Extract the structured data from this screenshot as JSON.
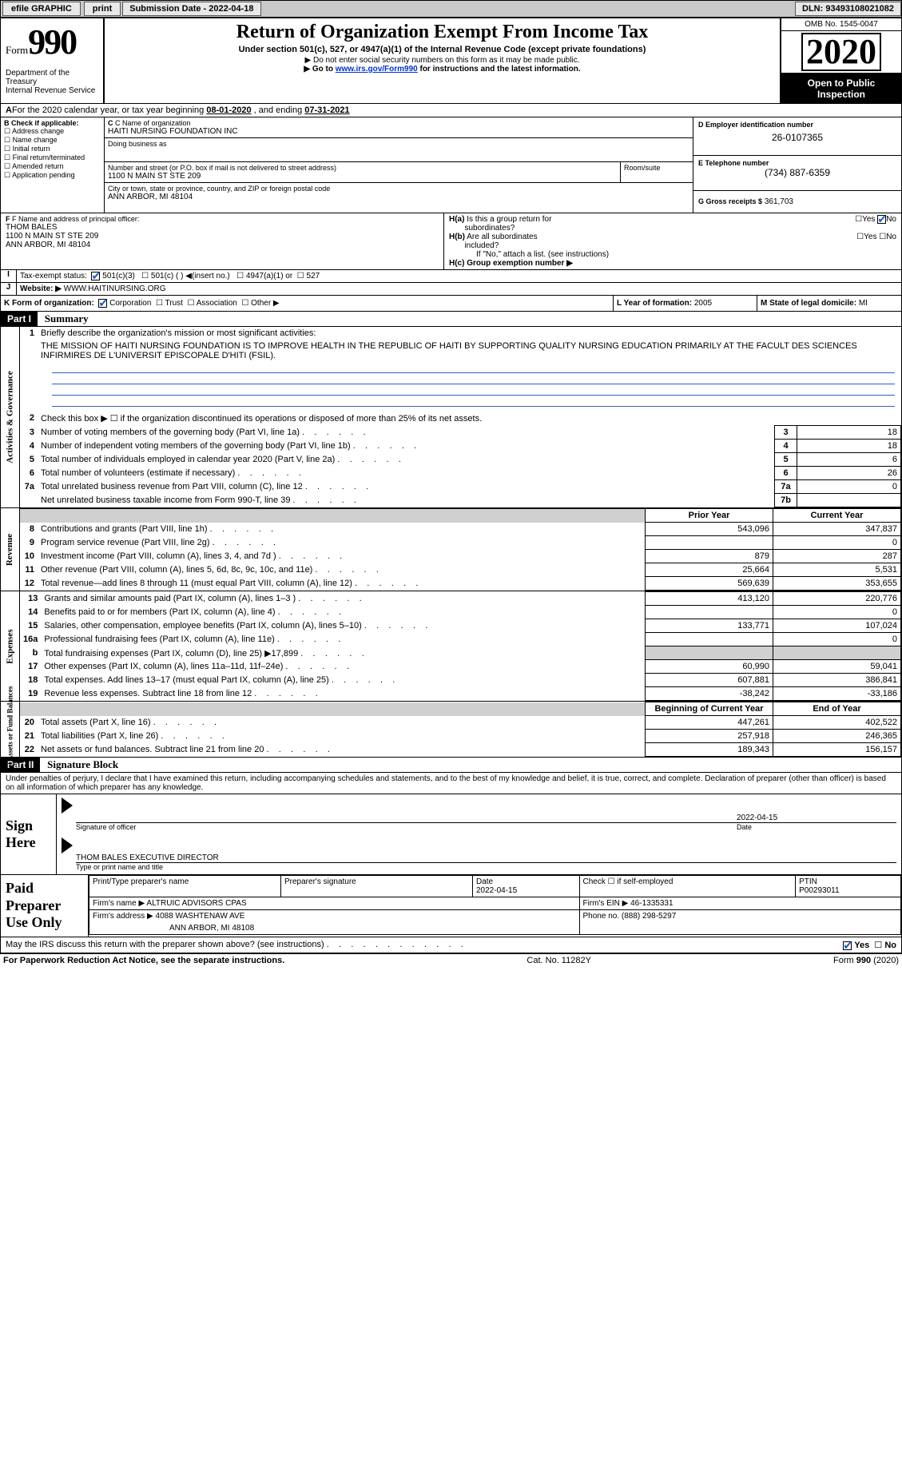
{
  "topbar": {
    "efile": "efile GRAPHIC",
    "print": "print",
    "sub_date_label": "Submission Date - 2022-04-18",
    "dln_label": "DLN: 93493108021082"
  },
  "header": {
    "form_word": "Form",
    "form_no": "990",
    "dept": "Department of the Treasury\nInternal Revenue Service",
    "title": "Return of Organization Exempt From Income Tax",
    "subtitle": "Under section 501(c), 527, or 4947(a)(1) of the Internal Revenue Code (except private foundations)",
    "note1": "▶ Do not enter social security numbers on this form as it may be made public.",
    "note2_pre": "▶ Go to ",
    "note2_link": "www.irs.gov/Form990",
    "note2_post": " for instructions and the latest information.",
    "omb": "OMB No. 1545-0047",
    "year": "2020",
    "open": "Open to Public Inspection"
  },
  "lineA": {
    "pre": "For the 2020 calendar year, or tax year beginning ",
    "begin": "08-01-2020",
    "mid": " , and ending ",
    "end": "07-31-2021"
  },
  "boxB": {
    "label": "B Check if applicable:",
    "items": [
      "Address change",
      "Name change",
      "Initial return",
      "Final return/terminated",
      "Amended return",
      "Application pending"
    ]
  },
  "boxC": {
    "name_label": "C Name of organization",
    "name": "HAITI NURSING FOUNDATION INC",
    "dba_label": "Doing business as",
    "addr_label": "Number and street (or P.O. box if mail is not delivered to street address)",
    "room_label": "Room/suite",
    "addr": "1100 N MAIN ST STE 209",
    "city_label": "City or town, state or province, country, and ZIP or foreign postal code",
    "city": "ANN ARBOR, MI  48104"
  },
  "boxD": {
    "label": "D Employer identification number",
    "val": "26-0107365"
  },
  "boxE": {
    "label": "E Telephone number",
    "val": "(734) 887-6359"
  },
  "boxG": {
    "label": "G Gross receipts $",
    "val": "361,703"
  },
  "boxF": {
    "label": "F Name and address of principal officer:",
    "name": "THOM BALES",
    "addr1": "1100 N MAIN ST STE 209",
    "addr2": "ANN ARBOR, MI  48104"
  },
  "boxH": {
    "a": "H(a)  Is this a group return for subordinates?",
    "b": "H(b)  Are all subordinates included?",
    "b_note": "If \"No,\" attach a list. (see instructions)",
    "c": "H(c)  Group exemption number ▶",
    "yes": "Yes",
    "no": "No"
  },
  "lineI": {
    "label": "Tax-exempt status:",
    "opt1": "501(c)(3)",
    "opt2_pre": "501(c) ( ) ",
    "opt2_post": "(insert no.)",
    "opt3": "4947(a)(1) or",
    "opt4": "527"
  },
  "lineJ": {
    "label": "Website: ▶",
    "val": "WWW.HAITINURSING.ORG"
  },
  "lineK": {
    "label": "K Form of organization:",
    "opts": [
      "Corporation",
      "Trust",
      "Association",
      "Other ▶"
    ]
  },
  "lineL": {
    "label": "L Year of formation:",
    "val": "2005"
  },
  "lineM": {
    "label": "M State of legal domicile:",
    "val": "MI"
  },
  "part1": {
    "tag": "Part I",
    "title": "Summary"
  },
  "part2": {
    "tag": "Part II",
    "title": "Signature Block"
  },
  "summary": {
    "q1": "Briefly describe the organization's mission or most significant activities:",
    "mission": "THE MISSION OF HAITI NURSING FOUNDATION IS TO IMPROVE HEALTH IN THE REPUBLIC OF HAITI BY SUPPORTING QUALITY NURSING EDUCATION PRIMARILY AT THE FACULT DES SCIENCES INFIRMIRES DE L'UNIVERSIT EPISCOPALE D'HITI (FSIL).",
    "q2": "Check this box ▶ ☐ if the organization discontinued its operations or disposed of more than 25% of its net assets."
  },
  "gov_rows": [
    {
      "no": "3",
      "text": "Number of voting members of the governing body (Part VI, line 1a)",
      "ref": "3",
      "val": "18"
    },
    {
      "no": "4",
      "text": "Number of independent voting members of the governing body (Part VI, line 1b)",
      "ref": "4",
      "val": "18"
    },
    {
      "no": "5",
      "text": "Total number of individuals employed in calendar year 2020 (Part V, line 2a)",
      "ref": "5",
      "val": "6"
    },
    {
      "no": "6",
      "text": "Total number of volunteers (estimate if necessary)",
      "ref": "6",
      "val": "26"
    },
    {
      "no": "7a",
      "text": "Total unrelated business revenue from Part VIII, column (C), line 12",
      "ref": "7a",
      "val": "0"
    },
    {
      "no": "",
      "text": "Net unrelated business taxable income from Form 990-T, line 39",
      "ref": "7b",
      "val": ""
    }
  ],
  "col_headers": {
    "b": "b",
    "prior": "Prior Year",
    "current": "Current Year",
    "begin": "Beginning of Current Year",
    "end": "End of Year"
  },
  "rev_rows": [
    {
      "no": "8",
      "text": "Contributions and grants (Part VIII, line 1h)",
      "py": "543,096",
      "cy": "347,837"
    },
    {
      "no": "9",
      "text": "Program service revenue (Part VIII, line 2g)",
      "py": "",
      "cy": "0"
    },
    {
      "no": "10",
      "text": "Investment income (Part VIII, column (A), lines 3, 4, and 7d )",
      "py": "879",
      "cy": "287"
    },
    {
      "no": "11",
      "text": "Other revenue (Part VIII, column (A), lines 5, 6d, 8c, 9c, 10c, and 11e)",
      "py": "25,664",
      "cy": "5,531"
    },
    {
      "no": "12",
      "text": "Total revenue—add lines 8 through 11 (must equal Part VIII, column (A), line 12)",
      "py": "569,639",
      "cy": "353,655"
    }
  ],
  "exp_rows": [
    {
      "no": "13",
      "text": "Grants and similar amounts paid (Part IX, column (A), lines 1–3 )",
      "py": "413,120",
      "cy": "220,776"
    },
    {
      "no": "14",
      "text": "Benefits paid to or for members (Part IX, column (A), line 4)",
      "py": "",
      "cy": "0"
    },
    {
      "no": "15",
      "text": "Salaries, other compensation, employee benefits (Part IX, column (A), lines 5–10)",
      "py": "133,771",
      "cy": "107,024"
    },
    {
      "no": "16a",
      "text": "Professional fundraising fees (Part IX, column (A), line 11e)",
      "py": "",
      "cy": "0"
    },
    {
      "no": "b",
      "text": "Total fundraising expenses (Part IX, column (D), line 25) ▶17,899",
      "py": "GREY",
      "cy": "GREY"
    },
    {
      "no": "17",
      "text": "Other expenses (Part IX, column (A), lines 11a–11d, 11f–24e)",
      "py": "60,990",
      "cy": "59,041"
    },
    {
      "no": "18",
      "text": "Total expenses. Add lines 13–17 (must equal Part IX, column (A), line 25)",
      "py": "607,881",
      "cy": "386,841"
    },
    {
      "no": "19",
      "text": "Revenue less expenses. Subtract line 18 from line 12",
      "py": "-38,242",
      "cy": "-33,186"
    }
  ],
  "net_rows": [
    {
      "no": "20",
      "text": "Total assets (Part X, line 16)",
      "py": "447,261",
      "cy": "402,522"
    },
    {
      "no": "21",
      "text": "Total liabilities (Part X, line 26)",
      "py": "257,918",
      "cy": "246,365"
    },
    {
      "no": "22",
      "text": "Net assets or fund balances. Subtract line 21 from line 20",
      "py": "189,343",
      "cy": "156,157"
    }
  ],
  "sidebars": {
    "gov": "Activities & Governance",
    "rev": "Revenue",
    "exp": "Expenses",
    "net": "Net Assets or Fund Balances"
  },
  "sig": {
    "penalties": "Under penalties of perjury, I declare that I have examined this return, including accompanying schedules and statements, and to the best of my knowledge and belief, it is true, correct, and complete. Declaration of preparer (other than officer) is based on all information of which preparer has any knowledge.",
    "sign_here": "Sign Here",
    "sig_officer": "Signature of officer",
    "date": "Date",
    "date_val": "2022-04-15",
    "name_val": "THOM BALES  EXECUTIVE DIRECTOR",
    "name_label": "Type or print name and title"
  },
  "prep": {
    "label": "Paid Preparer Use Only",
    "h1": "Print/Type preparer's name",
    "h2": "Preparer's signature",
    "h3": "Date",
    "h3v": "2022-04-15",
    "h4": "Check ☐ if self-employed",
    "h5": "PTIN",
    "h5v": "P00293011",
    "firm_label": "Firm's name ▶",
    "firm": "ALTRUIC ADVISORS CPAS",
    "ein_label": "Firm's EIN ▶",
    "ein": "46-1335331",
    "addr_label": "Firm's address ▶",
    "addr1": "4088 WASHTENAW AVE",
    "addr2": "ANN ARBOR, MI  48108",
    "phone_label": "Phone no.",
    "phone": "(888) 298-5297"
  },
  "discuss": {
    "text": "May the IRS discuss this return with the preparer shown above? (see instructions)",
    "yes": "Yes",
    "no": "No"
  },
  "footer": {
    "left": "For Paperwork Reduction Act Notice, see the separate instructions.",
    "mid": "Cat. No. 11282Y",
    "right_pre": "Form ",
    "right_no": "990",
    "right_post": " (2020)"
  },
  "colors": {
    "link": "#0033cc",
    "ruled": "#3060c0",
    "check": "#1a5fb4"
  }
}
